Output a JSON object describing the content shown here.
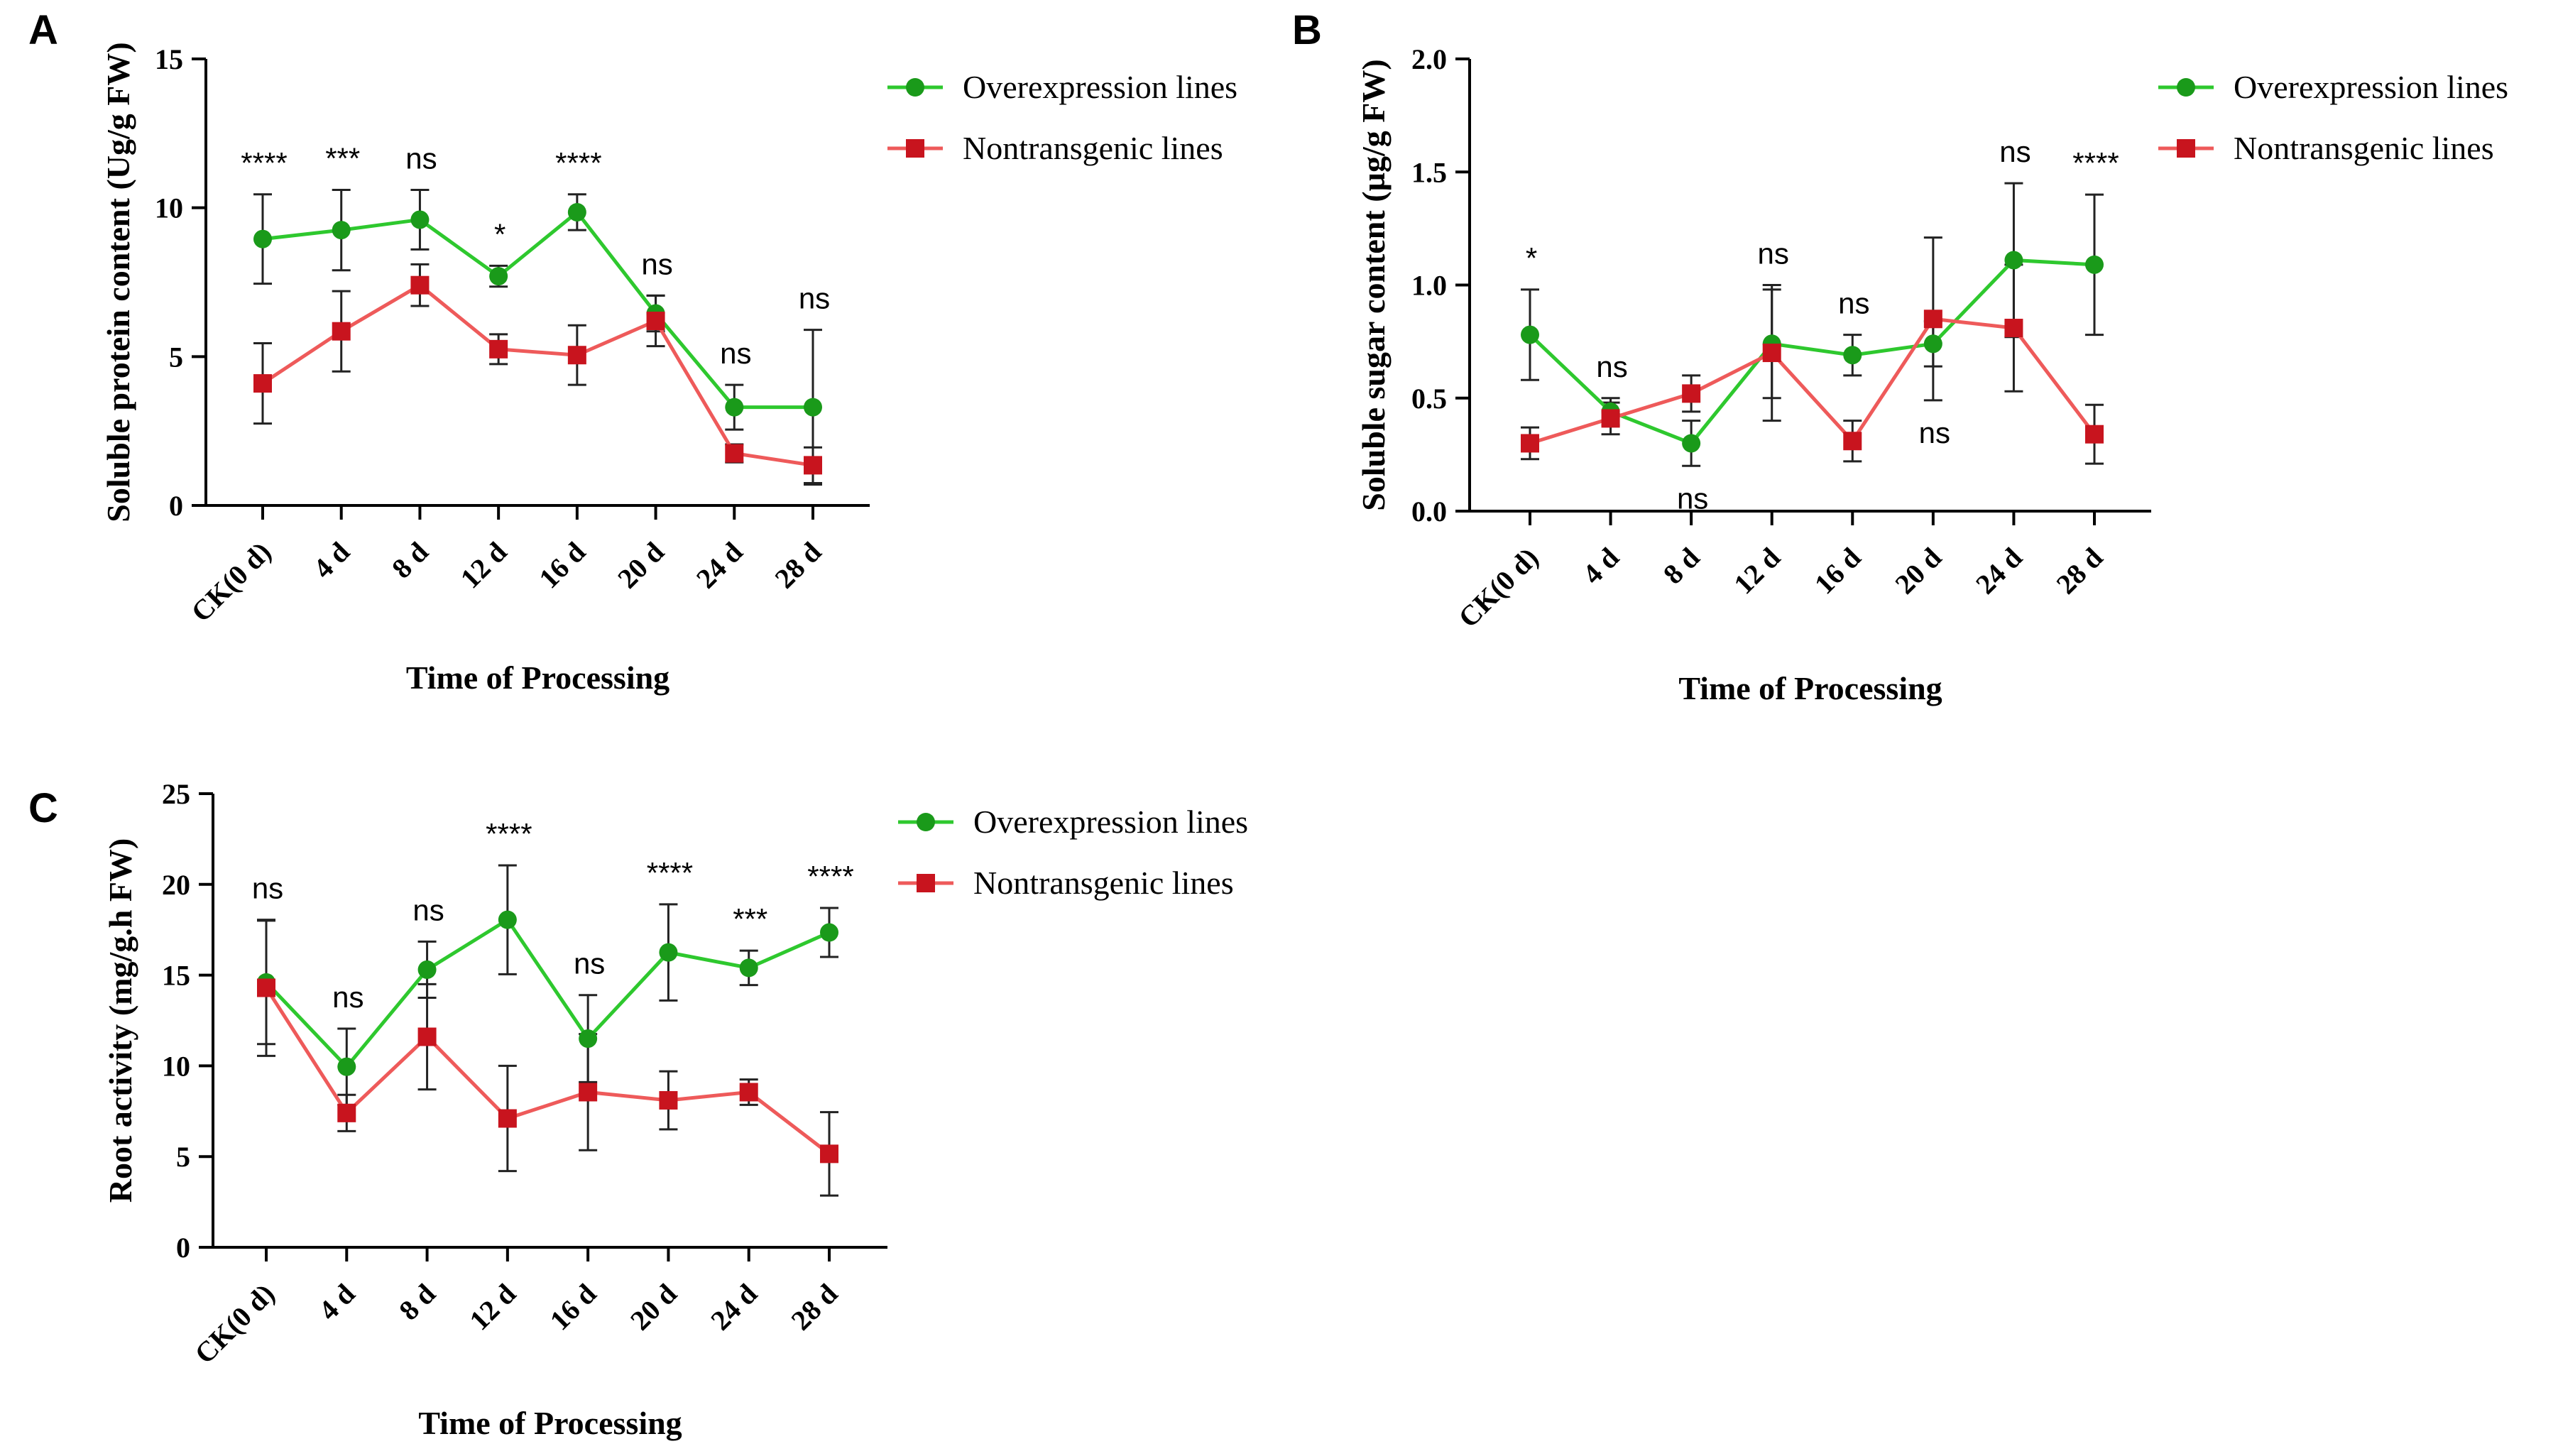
{
  "chart_data": [
    {
      "panel": "A",
      "type": "line",
      "title": "",
      "xlabel": "Time of Processing",
      "ylabel": "Soluble protein content (Ug/g FW)",
      "ylim": [
        0,
        15
      ],
      "yticks": [
        "0",
        "5",
        "10",
        "15"
      ],
      "categories": [
        "CK(0 d)",
        "4 d",
        "8 d",
        "12 d",
        "16 d",
        "20 d",
        "24 d",
        "28 d"
      ],
      "series": [
        {
          "name": "Overexpression lines",
          "color": "#1a9a1a",
          "marker": "circle",
          "values": [
            8.95,
            9.25,
            9.6,
            7.7,
            9.85,
            6.45,
            3.3,
            3.3
          ],
          "errors": [
            1.5,
            1.35,
            1.0,
            0.35,
            0.6,
            0.6,
            0.75,
            2.6
          ]
        },
        {
          "name": "Nontransgenic lines",
          "color": "#c8141e",
          "marker": "square",
          "values": [
            4.1,
            5.85,
            7.4,
            5.25,
            5.05,
            6.2,
            1.75,
            1.35
          ],
          "errors": [
            1.35,
            1.35,
            0.7,
            0.5,
            1.0,
            0.85,
            0.3,
            0.6
          ]
        }
      ],
      "significance": [
        "****",
        "***",
        "ns",
        "*",
        "****",
        "ns",
        "ns",
        "ns"
      ],
      "legend_position": "top-right"
    },
    {
      "panel": "B",
      "type": "line",
      "title": "",
      "xlabel": "Time of Processing",
      "ylabel": "Soluble sugar content (µg/g FW)",
      "ylim": [
        0,
        2.0
      ],
      "yticks": [
        "0.0",
        "0.5",
        "1.0",
        "1.5",
        "2.0"
      ],
      "categories": [
        "CK(0 d)",
        "4 d",
        "8 d",
        "12 d",
        "16 d",
        "20 d",
        "24 d",
        "28 d"
      ],
      "series": [
        {
          "name": "Overexpression lines",
          "color": "#1a9a1a",
          "marker": "circle",
          "values": [
            0.78,
            0.44,
            0.3,
            0.74,
            0.69,
            0.74,
            1.11,
            1.09
          ],
          "errors": [
            0.2,
            0.06,
            0.1,
            0.24,
            0.09,
            0.1,
            0.34,
            0.31
          ]
        },
        {
          "name": "Nontransgenic lines",
          "color": "#c8141e",
          "marker": "square",
          "values": [
            0.3,
            0.41,
            0.52,
            0.7,
            0.31,
            0.85,
            0.81,
            0.34
          ],
          "errors": [
            0.07,
            0.07,
            0.08,
            0.3,
            0.09,
            0.36,
            0.28,
            0.13
          ]
        }
      ],
      "significance": [
        "*",
        "ns",
        "ns",
        "ns",
        "ns",
        "ns",
        "ns",
        "****"
      ],
      "significance_below": [
        false,
        false,
        true,
        false,
        false,
        true,
        false,
        false
      ],
      "legend_position": "top-right"
    },
    {
      "panel": "C",
      "type": "line",
      "title": "",
      "xlabel": "Time of Processing",
      "ylabel": "Root activity (mg/g.h FW)",
      "ylim": [
        0,
        25
      ],
      "yticks": [
        "0",
        "5",
        "10",
        "15",
        "20",
        "25"
      ],
      "categories": [
        "CK(0 d)",
        "4 d",
        "8 d",
        "12 d",
        "16 d",
        "20 d",
        "24 d",
        "28 d"
      ],
      "series": [
        {
          "name": "Overexpression lines",
          "color": "#1a9a1a",
          "marker": "circle",
          "values": [
            14.6,
            9.95,
            15.3,
            18.05,
            11.5,
            16.25,
            15.4,
            17.35
          ],
          "errors": [
            3.4,
            2.1,
            1.55,
            3.0,
            2.4,
            2.65,
            0.95,
            1.35
          ]
        },
        {
          "name": "Nontransgenic lines",
          "color": "#c8141e",
          "marker": "square",
          "values": [
            14.3,
            7.4,
            11.6,
            7.1,
            8.55,
            8.1,
            8.55,
            5.15
          ],
          "errors": [
            3.75,
            1.0,
            2.9,
            2.9,
            3.2,
            1.6,
            0.7,
            2.3
          ]
        }
      ],
      "significance": [
        "ns",
        "ns",
        "ns",
        "****",
        "ns",
        "****",
        "***",
        "****"
      ],
      "legend_position": "top-right"
    }
  ]
}
